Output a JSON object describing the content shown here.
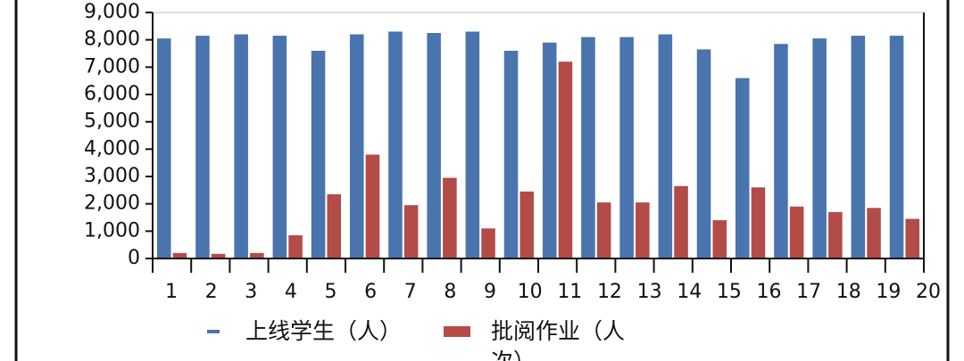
{
  "chart_data": {
    "type": "bar",
    "categories": [
      "1",
      "2",
      "3",
      "4",
      "5",
      "6",
      "7",
      "8",
      "9",
      "10",
      "11",
      "12",
      "13",
      "14",
      "15",
      "16",
      "17",
      "18",
      "19",
      "20"
    ],
    "series": [
      {
        "name": "上线学生（人）",
        "color": "#4a74ae",
        "values": [
          8050,
          8150,
          8200,
          8150,
          7600,
          8200,
          8300,
          8250,
          8300,
          7600,
          7900,
          8100,
          8100,
          8200,
          7650,
          6600,
          7850,
          8050,
          8150,
          8150
        ]
      },
      {
        "name": "批阅作业（人次）",
        "color": "#b34b47",
        "values": [
          200,
          170,
          200,
          850,
          2350,
          3800,
          1950,
          2950,
          1100,
          2450,
          7200,
          2050,
          2050,
          2650,
          1400,
          2600,
          1900,
          1700,
          1850,
          1450
        ]
      }
    ],
    "ylim": [
      0,
      9000
    ],
    "yticks": [
      {
        "value": 0,
        "label": "0"
      },
      {
        "value": 1000,
        "label": "1,000"
      },
      {
        "value": 2000,
        "label": "2,000"
      },
      {
        "value": 3000,
        "label": "3,000"
      },
      {
        "value": 4000,
        "label": "4,000"
      },
      {
        "value": 5000,
        "label": "5,000"
      },
      {
        "value": 6000,
        "label": "6,000"
      },
      {
        "value": 7000,
        "label": "7,000"
      },
      {
        "value": 8000,
        "label": "8,000"
      },
      {
        "value": 9000,
        "label": "9,000"
      }
    ],
    "legend": "bottom"
  }
}
